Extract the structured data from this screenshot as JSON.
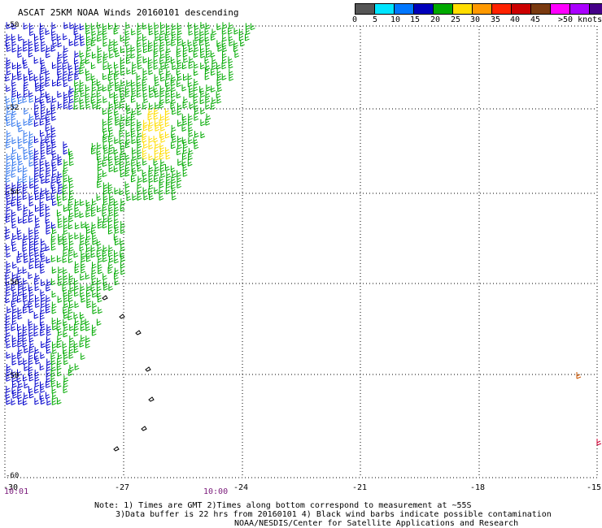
{
  "title": "ASCAT 25KM NOAA Winds 20160101 descending",
  "legend": {
    "colors": [
      "#555555",
      "#00e5ff",
      "#0077ff",
      "#0000bb",
      "#00aa00",
      "#ffdd00",
      "#ff9900",
      "#ff2200",
      "#cc0000",
      "#7a3a10",
      "#ff00ff",
      "#aa00ff",
      "#440088"
    ],
    "labels": [
      "0",
      "5",
      "10",
      "15",
      "20",
      "25",
      "30",
      "35",
      "40",
      "45",
      ">50 knots"
    ]
  },
  "axes": {
    "lat_labels": [
      "-50",
      "-52",
      "-54",
      "-56",
      "-58",
      "-60"
    ],
    "lon_labels": [
      "-30",
      "-27",
      "-24",
      "-21",
      "-18",
      "-15"
    ]
  },
  "times": [
    "10:01",
    "10:00"
  ],
  "notes": [
    "Note: 1) Times are GMT 2)Times along bottom correspond to measurement at ~55S",
    "3)Data buffer is 22 hrs from 20160101 4) Black wind barbs indicate possible contamination",
    "NOAA/NESDIS/Center for Satellite Applications and Research"
  ],
  "wind_colors": {
    "weak": "#0000cc",
    "light": "#3377ee",
    "moderate": "#00aa00",
    "strong": "#ffdd00",
    "edge": "#cc5500",
    "contaminated": "#000000"
  }
}
